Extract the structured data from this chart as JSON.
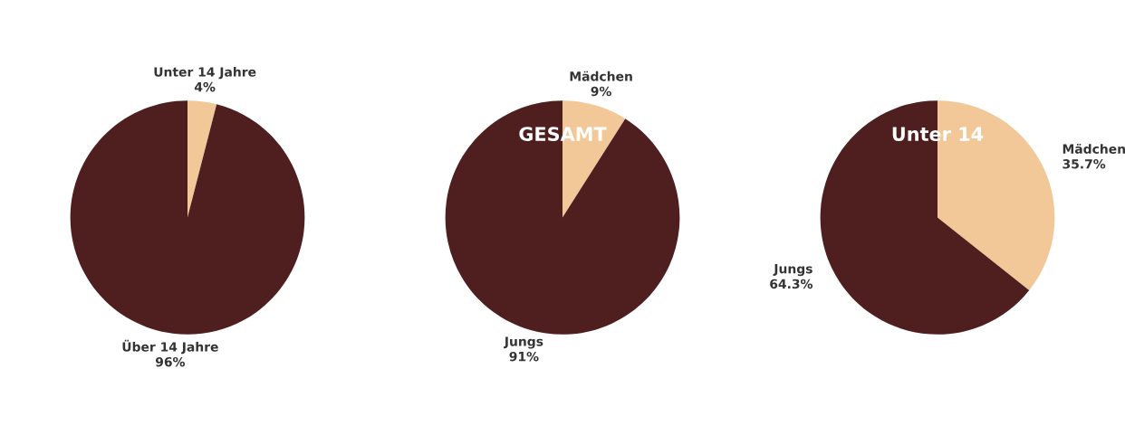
{
  "chart_data": [
    {
      "type": "pie",
      "categories": [
        "Unter 14 Jahre",
        "Über 14 Jahre"
      ],
      "values": [
        4,
        96
      ],
      "value_labels": [
        "4%",
        "96%"
      ],
      "colors": [
        "#f3c898",
        "#4f1f1f"
      ],
      "legend": false
    },
    {
      "type": "pie",
      "title": "GESAMT",
      "categories": [
        "Mädchen",
        "Jungs"
      ],
      "values": [
        9,
        91
      ],
      "value_labels": [
        "9%",
        "91%"
      ],
      "colors": [
        "#f3c898",
        "#4f1f1f"
      ],
      "legend": false
    },
    {
      "type": "pie",
      "title": "Unter 14",
      "categories": [
        "Mädchen",
        "Jungs"
      ],
      "values": [
        35.7,
        64.3
      ],
      "value_labels": [
        "35.7%",
        "64.3%"
      ],
      "colors": [
        "#f3c898",
        "#4f1f1f"
      ],
      "legend": false
    }
  ]
}
